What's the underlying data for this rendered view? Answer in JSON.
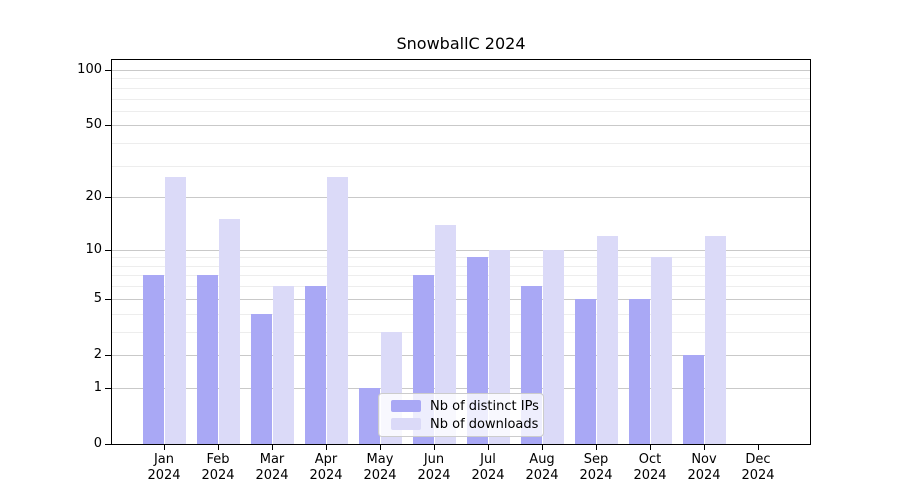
{
  "title": "SnowballC 2024",
  "chart_data": {
    "type": "bar",
    "title": "SnowballC 2024",
    "categories": [
      "Jan 2024",
      "Feb 2024",
      "Mar 2024",
      "Apr 2024",
      "May 2024",
      "Jun 2024",
      "Jul 2024",
      "Aug 2024",
      "Sep 2024",
      "Oct 2024",
      "Nov 2024",
      "Dec 2024"
    ],
    "series": [
      {
        "name": "Nb of distinct IPs",
        "color": "#a9a8f5",
        "values": [
          7,
          7,
          4,
          6,
          1,
          7,
          9,
          6,
          5,
          5,
          2,
          0
        ]
      },
      {
        "name": "Nb of downloads",
        "color": "#dbdaf8",
        "values": [
          26,
          15,
          6,
          26,
          3,
          14,
          10,
          10,
          12,
          9,
          12,
          0
        ]
      }
    ],
    "yscale": "log1p",
    "y_ticks": [
      0,
      1,
      2,
      5,
      10,
      20,
      50,
      100
    ],
    "y_minor_gridlines": [
      3,
      4,
      6,
      7,
      8,
      9,
      30,
      40,
      60,
      70,
      80,
      90
    ],
    "ylim": [
      0,
      113
    ],
    "grid": "horizontal",
    "legend_position": "lower center"
  },
  "legend": {
    "items": [
      {
        "label": "Nb of distinct IPs"
      },
      {
        "label": "Nb of downloads"
      }
    ]
  },
  "colors": {
    "background": "#ffffff",
    "axis": "#000000",
    "grid_major": "#c9c9c9",
    "grid_minor": "#ededed",
    "series_ips": "#a9a8f5",
    "series_downloads": "#dbdaf8",
    "legend_border": "#cccccc"
  }
}
